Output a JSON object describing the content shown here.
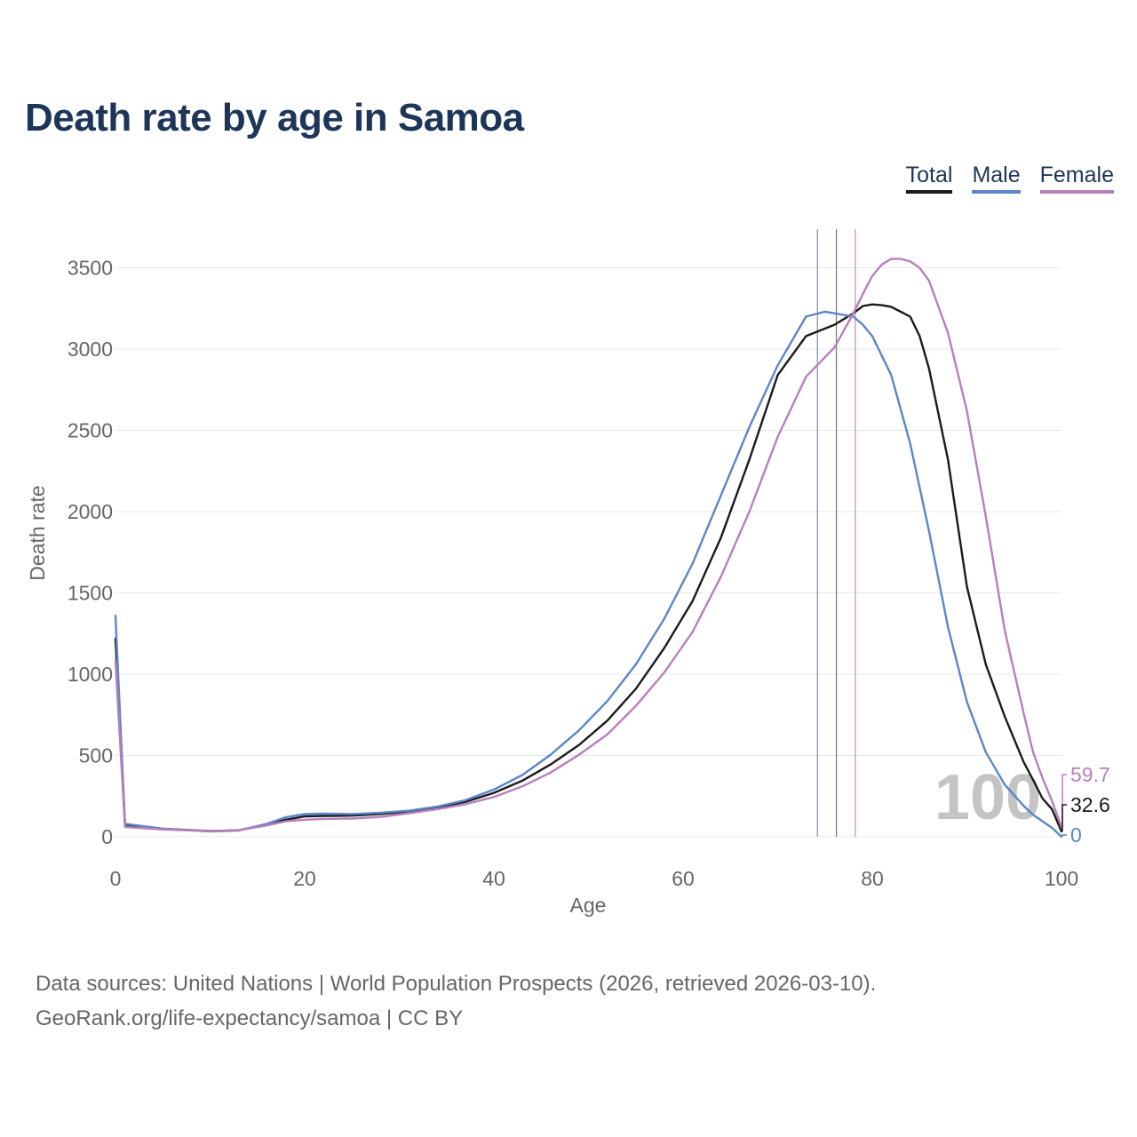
{
  "title": "Death rate by age in Samoa",
  "legend": [
    {
      "label": "Total",
      "color": "#1a1a1a"
    },
    {
      "label": "Male",
      "color": "#5b86c8"
    },
    {
      "label": "Female",
      "color": "#b77fbc"
    }
  ],
  "chart_data": {
    "type": "line",
    "title": "Death rate by age in Samoa",
    "xlabel": "Age",
    "ylabel": "Death rate",
    "xlim": [
      0,
      100
    ],
    "ylim": [
      0,
      3700
    ],
    "xticks": [
      0,
      20,
      40,
      60,
      80,
      100
    ],
    "yticks": [
      0,
      500,
      1000,
      1500,
      2000,
      2500,
      3000,
      3500
    ],
    "grid": true,
    "legend_position": "top-right",
    "watermark": "100",
    "life_expectancy_markers": [
      {
        "series": "Male",
        "age": 74.2
      },
      {
        "series": "Total",
        "age": 76.2
      },
      {
        "series": "Female",
        "age": 78.2
      }
    ],
    "end_labels": [
      {
        "series": "Female",
        "text": "59.7"
      },
      {
        "series": "Total",
        "text": "32.6"
      },
      {
        "series": "Male",
        "text": "0"
      }
    ],
    "series": [
      {
        "name": "Total",
        "color": "#1a1a1a",
        "x": [
          0,
          1,
          5,
          10,
          13,
          16,
          18,
          20,
          22,
          25,
          28,
          31,
          34,
          37,
          40,
          43,
          46,
          49,
          52,
          55,
          58,
          61,
          64,
          67,
          70,
          73,
          76,
          78,
          79,
          80,
          81,
          82,
          84,
          85,
          86,
          88,
          90,
          92,
          94,
          96,
          97,
          98,
          99,
          100
        ],
        "y": [
          1220,
          75,
          50,
          35,
          40,
          75,
          105,
          125,
          128,
          130,
          140,
          155,
          180,
          215,
          270,
          345,
          445,
          565,
          715,
          910,
          1160,
          1450,
          1840,
          2320,
          2840,
          3080,
          3150,
          3220,
          3265,
          3275,
          3270,
          3260,
          3200,
          3080,
          2880,
          2320,
          1540,
          1060,
          740,
          460,
          350,
          235,
          170,
          32.6
        ]
      },
      {
        "name": "Male",
        "color": "#5b86c8",
        "x": [
          0,
          1,
          5,
          10,
          13,
          16,
          18,
          20,
          22,
          25,
          28,
          31,
          34,
          37,
          40,
          43,
          46,
          49,
          52,
          55,
          58,
          61,
          64,
          67,
          70,
          73,
          75,
          76,
          77,
          78,
          79,
          80,
          82,
          84,
          86,
          88,
          90,
          92,
          94,
          96,
          97,
          98,
          99,
          100
        ],
        "y": [
          1360,
          80,
          50,
          32,
          38,
          80,
          120,
          140,
          142,
          140,
          148,
          160,
          185,
          225,
          290,
          380,
          505,
          655,
          835,
          1060,
          1340,
          1680,
          2100,
          2520,
          2900,
          3200,
          3230,
          3220,
          3210,
          3200,
          3150,
          3080,
          2840,
          2420,
          1880,
          1290,
          830,
          520,
          320,
          190,
          135,
          95,
          55,
          0
        ]
      },
      {
        "name": "Female",
        "color": "#b77fbc",
        "x": [
          0,
          1,
          5,
          10,
          13,
          16,
          18,
          20,
          22,
          25,
          28,
          31,
          34,
          37,
          40,
          43,
          46,
          49,
          52,
          55,
          58,
          61,
          64,
          67,
          70,
          73,
          76,
          78,
          79,
          80,
          81,
          82,
          83,
          84,
          85,
          86,
          88,
          90,
          92,
          94,
          96,
          97,
          98,
          99,
          100
        ],
        "y": [
          1080,
          60,
          45,
          35,
          40,
          70,
          95,
          105,
          110,
          112,
          122,
          145,
          170,
          200,
          245,
          310,
          395,
          505,
          630,
          805,
          1010,
          1260,
          1600,
          2000,
          2460,
          2830,
          3010,
          3220,
          3340,
          3450,
          3520,
          3555,
          3555,
          3540,
          3500,
          3420,
          3100,
          2620,
          1970,
          1270,
          760,
          520,
          360,
          220,
          59.7
        ]
      }
    ]
  },
  "footer": {
    "line1": "Data sources: United Nations | World Population Prospects (2026, retrieved 2026-03-10).",
    "line2": "GeoRank.org/life-expectancy/samoa | CC BY"
  }
}
